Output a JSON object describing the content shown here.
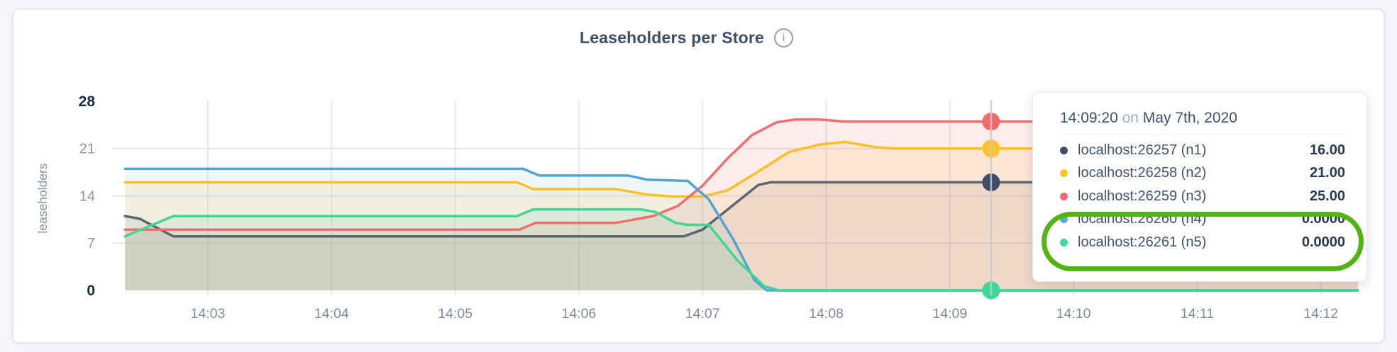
{
  "page": {
    "background": "#f4f6fa",
    "card_background": "#ffffff"
  },
  "header": {
    "info_icon_glyph": "i"
  },
  "chart_data": {
    "type": "area",
    "title": "Leaseholders per Store",
    "xlabel": "",
    "ylabel": "leaseholders",
    "ylim": [
      0,
      28
    ],
    "yticks": [
      0,
      7,
      14,
      21,
      28
    ],
    "ytick_labels": [
      "0",
      "7",
      "14",
      "21",
      "28"
    ],
    "grid_yticks": [
      7,
      14,
      21
    ],
    "xtick_labels": [
      "14:03",
      "14:04",
      "14:05",
      "14:06",
      "14:07",
      "14:08",
      "14:09",
      "14:10",
      "14:11",
      "14:12"
    ],
    "xtick_minutes": [
      3,
      4,
      5,
      6,
      7,
      8,
      9,
      10,
      11,
      12
    ],
    "x_range_minutes": [
      2.33,
      12.3
    ],
    "legend_position": "tooltip",
    "grid": true,
    "hover": {
      "time_label": "14:09:20",
      "minute": 9.3333
    },
    "series": [
      {
        "name": "localhost:26257 (n1)",
        "node": "n1",
        "color": "#5c6670",
        "dot_color": "#3f4e68",
        "fill": "rgba(92,102,112,0.11)",
        "hover_value": 16,
        "points": [
          [
            2.33,
            11
          ],
          [
            2.45,
            10.6
          ],
          [
            2.72,
            8
          ],
          [
            6.85,
            8
          ],
          [
            7.0,
            9
          ],
          [
            7.45,
            15.6
          ],
          [
            7.55,
            16
          ],
          [
            12.3,
            16
          ]
        ]
      },
      {
        "name": "localhost:26258 (n2)",
        "node": "n2",
        "color": "#fdbe2b",
        "dot_color": "#fec32d",
        "fill": "rgba(253,190,43,0.13)",
        "hover_value": 21,
        "points": [
          [
            2.33,
            16
          ],
          [
            5.5,
            16
          ],
          [
            5.63,
            15
          ],
          [
            6.3,
            15
          ],
          [
            6.55,
            14.2
          ],
          [
            6.75,
            13.9
          ],
          [
            7.0,
            13.9
          ],
          [
            7.2,
            14.8
          ],
          [
            7.45,
            17.6
          ],
          [
            7.7,
            20.5
          ],
          [
            7.95,
            21.6
          ],
          [
            8.15,
            22
          ],
          [
            8.4,
            21.2
          ],
          [
            8.55,
            21
          ],
          [
            12.3,
            21
          ]
        ]
      },
      {
        "name": "localhost:26259 (n3)",
        "node": "n3",
        "color": "#ee6f6f",
        "dot_color": "#f4696b",
        "fill": "rgba(238,111,111,0.13)",
        "hover_value": 25,
        "points": [
          [
            2.33,
            9
          ],
          [
            5.52,
            9
          ],
          [
            5.65,
            10
          ],
          [
            6.3,
            10
          ],
          [
            6.6,
            11
          ],
          [
            6.8,
            12.5
          ],
          [
            7.0,
            15.5
          ],
          [
            7.2,
            19.5
          ],
          [
            7.4,
            23
          ],
          [
            7.6,
            24.9
          ],
          [
            7.75,
            25.3
          ],
          [
            7.95,
            25.3
          ],
          [
            8.15,
            25
          ],
          [
            12.3,
            25
          ]
        ]
      },
      {
        "name": "localhost:26260 (n4)",
        "node": "n4",
        "color": "#54a2d3",
        "dot_color": "#57a8dc",
        "fill": "rgba(84,162,211,0.09)",
        "hover_value": 0,
        "points": [
          [
            2.33,
            18
          ],
          [
            5.55,
            18
          ],
          [
            5.68,
            17
          ],
          [
            6.4,
            17
          ],
          [
            6.55,
            16.4
          ],
          [
            6.88,
            16.2
          ],
          [
            7.05,
            13.5
          ],
          [
            7.25,
            7.5
          ],
          [
            7.42,
            1.5
          ],
          [
            7.52,
            0
          ],
          [
            12.3,
            0
          ]
        ]
      },
      {
        "name": "localhost:26261 (n5)",
        "node": "n5",
        "color": "#41d694",
        "dot_color": "#41d694",
        "fill": "rgba(65,214,148,0.11)",
        "hover_value": 0,
        "points": [
          [
            2.33,
            8
          ],
          [
            2.72,
            11
          ],
          [
            5.5,
            11
          ],
          [
            5.63,
            12
          ],
          [
            6.5,
            12
          ],
          [
            6.62,
            11.6
          ],
          [
            6.78,
            10
          ],
          [
            6.88,
            9.7
          ],
          [
            7.05,
            9.7
          ],
          [
            7.28,
            4.5
          ],
          [
            7.5,
            0.6
          ],
          [
            7.62,
            0
          ],
          [
            12.3,
            0
          ]
        ]
      }
    ]
  },
  "tooltip": {
    "time": "14:09:20",
    "on_word": "on",
    "date": "May 7th, 2020",
    "rows": [
      {
        "label": "localhost:26257 (n1)",
        "value": "16.00",
        "color": "#3f4e68"
      },
      {
        "label": "localhost:26258 (n2)",
        "value": "21.00",
        "color": "#fec32d"
      },
      {
        "label": "localhost:26259 (n3)",
        "value": "25.00",
        "color": "#f4696b"
      },
      {
        "label": "localhost:26260 (n4)",
        "value": "0.0000",
        "color": "#57a8dc"
      },
      {
        "label": "localhost:26261 (n5)",
        "value": "0.0000",
        "color": "#41d694"
      }
    ],
    "highlight_annotation": {
      "circled_rows": [
        "localhost:26260 (n4)",
        "localhost:26261 (n5)"
      ],
      "color": "#53b314"
    }
  }
}
